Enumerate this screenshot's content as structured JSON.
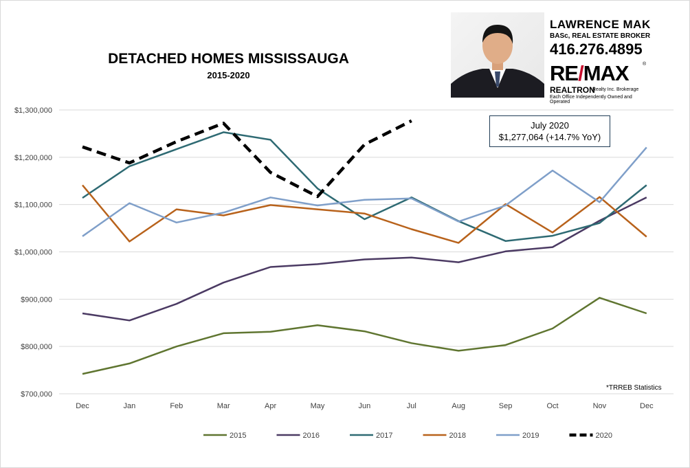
{
  "header": {
    "title": "DETACHED HOMES MISSISSAUGA",
    "subtitle": "2015-2020"
  },
  "branding": {
    "agent_name": "LAWRENCE MAK",
    "agent_role": "BASc, REAL ESTATE BROKER",
    "phone": "416.276.4895",
    "logo_left": "RE",
    "logo_slash": "/",
    "logo_right": "MAX",
    "logo_reg": "®",
    "brokerage": "REALTRON",
    "brokerage_sub": "Realty Inc. Brokerage",
    "disclaimer": "Each Office Independently Owned and Operated",
    "icon": "agent-photo"
  },
  "callout": {
    "line1": "July 2020",
    "line2": "$1,277,064  (+14.7% YoY)"
  },
  "source": "*TRREB Statistics",
  "chart_data": {
    "type": "line",
    "title": "DETACHED HOMES MISSISSAUGA",
    "subtitle": "2015-2020",
    "categories": [
      "Dec",
      "Jan",
      "Feb",
      "Mar",
      "Apr",
      "May",
      "Jun",
      "Jul",
      "Aug",
      "Sep",
      "Oct",
      "Nov",
      "Dec"
    ],
    "y_ticks": [
      "$700,000",
      "$800,000",
      "$900,000",
      "$1,000,000",
      "$1,100,000",
      "$1,200,000",
      "$1,300,000"
    ],
    "ylim": [
      700000,
      1300000
    ],
    "grid": true,
    "legend_position": "bottom",
    "series": [
      {
        "name": "2015",
        "color": "#5f7530",
        "dashed": false,
        "values": [
          742000,
          764000,
          800000,
          828000,
          831000,
          845000,
          832000,
          807000,
          791000,
          803000,
          838000,
          903000,
          870000
        ]
      },
      {
        "name": "2016",
        "color": "#4b3a63",
        "dashed": false,
        "values": [
          870000,
          855000,
          890000,
          935000,
          968000,
          974000,
          984000,
          988000,
          978000,
          1001000,
          1010000,
          1066000,
          1115000
        ]
      },
      {
        "name": "2017",
        "color": "#2e6a73",
        "dashed": false,
        "values": [
          1114000,
          1181000,
          1217000,
          1253000,
          1237000,
          1134000,
          1069000,
          1115000,
          1065000,
          1023000,
          1034000,
          1061000,
          1141000
        ]
      },
      {
        "name": "2018",
        "color": "#b8621b",
        "dashed": false,
        "values": [
          1141000,
          1022000,
          1090000,
          1077000,
          1099000,
          1090000,
          1081000,
          1048000,
          1019000,
          1101000,
          1041000,
          1116000,
          1032000
        ]
      },
      {
        "name": "2019",
        "color": "#7f9fc9",
        "dashed": false,
        "values": [
          1033000,
          1103000,
          1062000,
          1083000,
          1115000,
          1098000,
          1110000,
          1113000,
          1064000,
          1098000,
          1172000,
          1105000,
          1221000
        ]
      },
      {
        "name": "2020",
        "color": "#000000",
        "dashed": true,
        "values": [
          1222000,
          1188000,
          1233000,
          1272000,
          1168000,
          1117000,
          1227000,
          1277064,
          null,
          null,
          null,
          null,
          null
        ]
      }
    ]
  }
}
